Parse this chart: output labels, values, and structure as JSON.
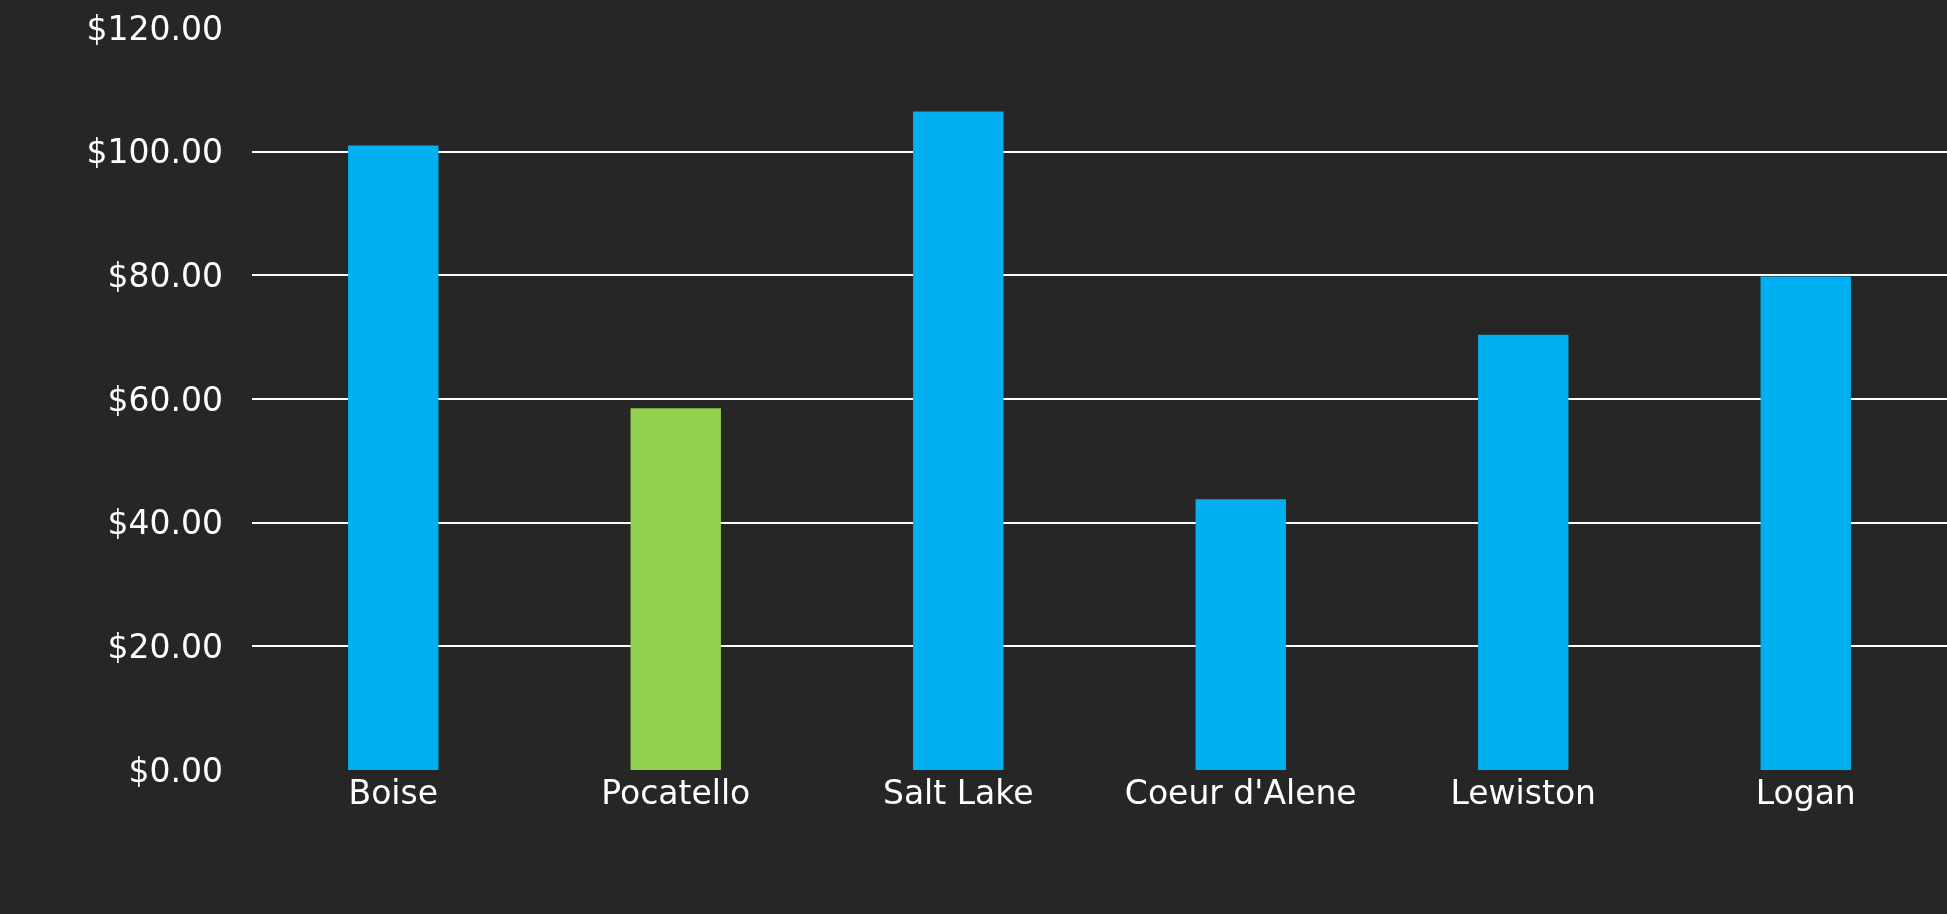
{
  "chart_data": {
    "type": "bar",
    "categories": [
      "Boise",
      "Pocatello",
      "Salt Lake",
      "Coeur d'Alene",
      "Lewiston",
      "Logan"
    ],
    "values": [
      101,
      58.5,
      106.5,
      43.8,
      70.4,
      79.8
    ],
    "colors": [
      "#00b0f0",
      "#92d050",
      "#00b0f0",
      "#00b0f0",
      "#00b0f0",
      "#00b0f0"
    ],
    "ylim": [
      0,
      120
    ],
    "yticks": [
      {
        "value": 0,
        "label": "$0.00"
      },
      {
        "value": 20,
        "label": "$20.00"
      },
      {
        "value": 40,
        "label": "$40.00"
      },
      {
        "value": 60,
        "label": "$60.00"
      },
      {
        "value": 80,
        "label": "$80.00"
      },
      {
        "value": 100,
        "label": "$100.00"
      },
      {
        "value": 120,
        "label": "$120.00"
      }
    ],
    "grid": "y",
    "legend": false
  }
}
